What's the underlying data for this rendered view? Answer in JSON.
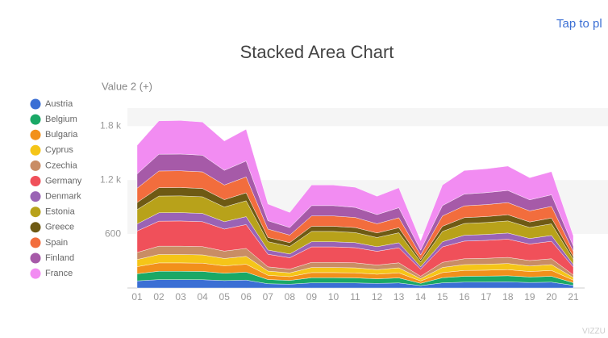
{
  "chart_data": {
    "type": "stacked_area",
    "title": "Stacked Area Chart",
    "y_axis_label": "Value 2 (+)",
    "top_right_text": "Tap to pl",
    "watermark": "VIZZU",
    "categories": [
      "01",
      "02",
      "03",
      "04",
      "05",
      "06",
      "07",
      "08",
      "09",
      "10",
      "11",
      "12",
      "13",
      "14",
      "15",
      "16",
      "17",
      "18",
      "19",
      "20",
      "21"
    ],
    "ylim": [
      0,
      2000
    ],
    "yticks": [
      600,
      {
        "value": 1200,
        "label": "1.2 k"
      },
      {
        "value": 1800,
        "label": "1.8 k"
      }
    ],
    "legend": "left",
    "series": [
      {
        "name": "Austria",
        "color": "#3b6fd4",
        "values": [
          79,
          93,
          93,
          92,
          82,
          88,
          47,
          42,
          57,
          57,
          56,
          51,
          56,
          26,
          57,
          65,
          66,
          68,
          61,
          65,
          29
        ]
      },
      {
        "name": "Belgium",
        "color": "#1aa866",
        "values": [
          79,
          93,
          93,
          92,
          82,
          88,
          47,
          42,
          57,
          57,
          56,
          51,
          56,
          26,
          57,
          65,
          66,
          68,
          61,
          65,
          29
        ]
      },
      {
        "name": "Bulgaria",
        "color": "#f2901b",
        "values": [
          79,
          93,
          93,
          92,
          82,
          88,
          47,
          42,
          57,
          57,
          56,
          51,
          56,
          26,
          57,
          65,
          66,
          68,
          61,
          65,
          29
        ]
      },
      {
        "name": "Cyprus",
        "color": "#f5c518",
        "values": [
          79,
          93,
          93,
          92,
          82,
          88,
          47,
          42,
          57,
          57,
          56,
          51,
          56,
          26,
          57,
          65,
          66,
          68,
          61,
          65,
          29
        ]
      },
      {
        "name": "Czechia",
        "color": "#c98d65",
        "values": [
          79,
          93,
          93,
          92,
          82,
          88,
          47,
          42,
          57,
          57,
          56,
          51,
          56,
          26,
          57,
          65,
          66,
          68,
          61,
          65,
          29
        ]
      },
      {
        "name": "Germany",
        "color": "#f0505a",
        "values": [
          238,
          278,
          280,
          277,
          245,
          265,
          140,
          126,
          172,
          172,
          168,
          153,
          167,
          79,
          172,
          196,
          199,
          203,
          184,
          194,
          87
        ]
      },
      {
        "name": "Denmark",
        "color": "#9a63b5",
        "values": [
          79,
          93,
          93,
          92,
          82,
          88,
          47,
          42,
          57,
          57,
          56,
          51,
          56,
          26,
          57,
          65,
          66,
          68,
          61,
          65,
          29
        ]
      },
      {
        "name": "Estonia",
        "color": "#b8a21a",
        "values": [
          159,
          186,
          186,
          185,
          163,
          177,
          93,
          84,
          115,
          115,
          112,
          102,
          111,
          53,
          115,
          131,
          133,
          135,
          123,
          129,
          58
        ]
      },
      {
        "name": "Greece",
        "color": "#6e5a14",
        "values": [
          79,
          93,
          93,
          92,
          82,
          88,
          47,
          42,
          57,
          57,
          56,
          51,
          56,
          26,
          57,
          65,
          66,
          68,
          61,
          65,
          29
        ]
      },
      {
        "name": "Spain",
        "color": "#f26d3d",
        "values": [
          159,
          186,
          186,
          185,
          163,
          177,
          93,
          84,
          115,
          115,
          112,
          102,
          111,
          53,
          115,
          131,
          133,
          135,
          123,
          129,
          58
        ]
      },
      {
        "name": "Finland",
        "color": "#a65aa8",
        "values": [
          159,
          186,
          186,
          185,
          163,
          177,
          93,
          84,
          115,
          115,
          112,
          102,
          111,
          53,
          115,
          131,
          133,
          135,
          123,
          129,
          58
        ]
      },
      {
        "name": "France",
        "color": "#f28cf2",
        "values": [
          317,
          371,
          373,
          369,
          326,
          353,
          186,
          168,
          229,
          229,
          224,
          204,
          222,
          106,
          229,
          262,
          265,
          271,
          246,
          258,
          116
        ]
      }
    ]
  }
}
